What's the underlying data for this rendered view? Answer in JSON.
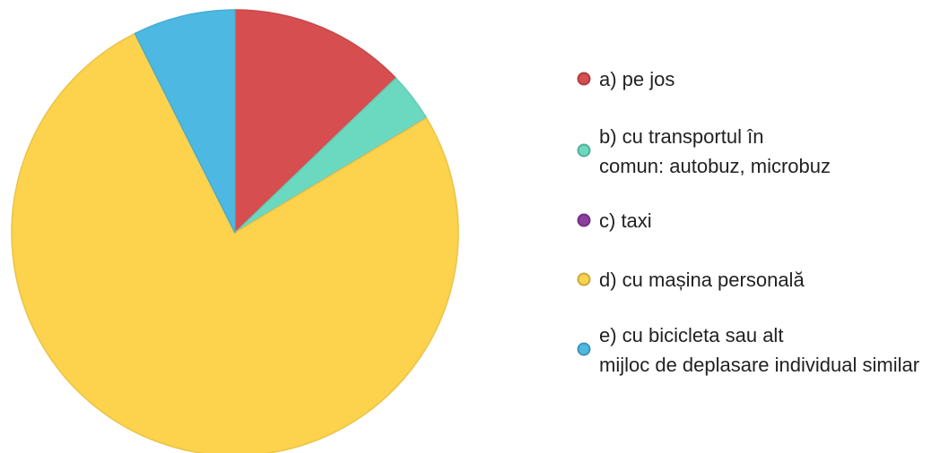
{
  "chart_data": {
    "type": "pie",
    "categories": [
      "a) pe jos",
      "b) cu transportul în comun: autobuz, microbuz",
      "c) taxi",
      "d) cu mașina personală",
      "e) cu bicicleta sau alt mijloc de deplasare individual similar"
    ],
    "values": [
      12.8,
      3.6,
      0,
      76.2,
      7.4
    ],
    "colors": [
      "#d64e50",
      "#6ad9c0",
      "#8e3fa0",
      "#fdd24c",
      "#4db9e2"
    ],
    "legend": "right"
  }
}
